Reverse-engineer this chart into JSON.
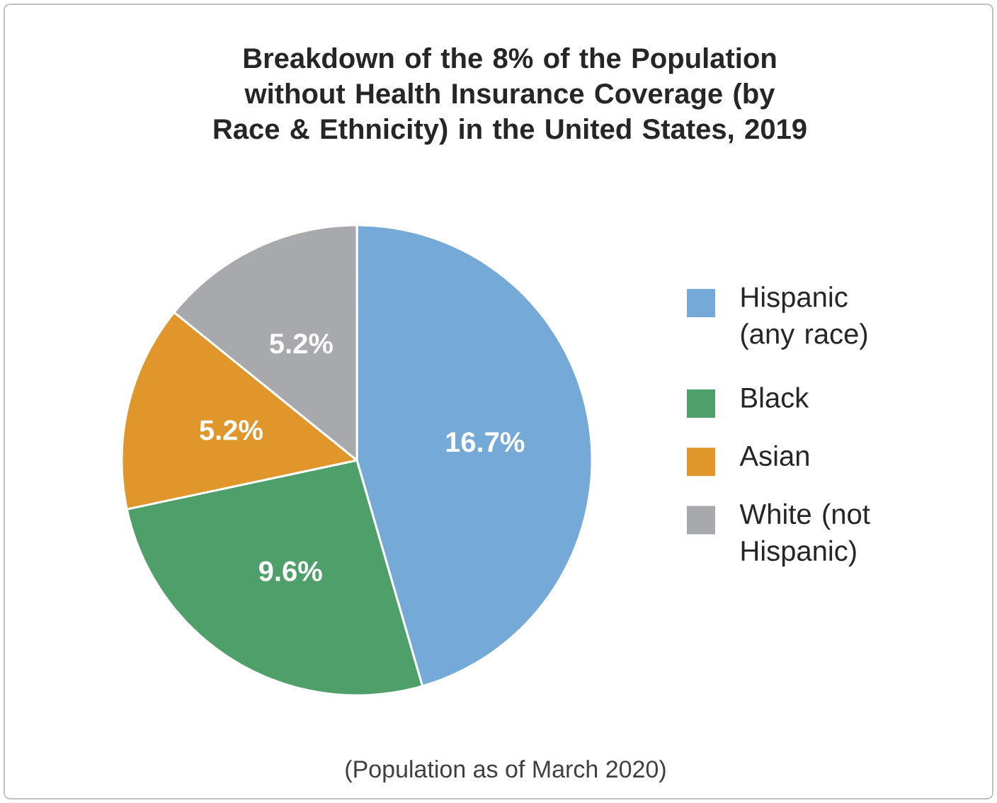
{
  "chart_data": {
    "type": "pie",
    "title": "Breakdown of the 8% of the Population without Health Insurance Coverage (by Race & Ethnicity) in the United States, 2019",
    "categories": [
      "Hispanic (any race)",
      "Black",
      "Asian",
      "White (not Hispanic)"
    ],
    "values": [
      16.7,
      9.6,
      5.2,
      5.2
    ],
    "value_labels": [
      "16.7%",
      "9.6%",
      "5.2%",
      "5.2%"
    ],
    "colors": [
      "#74a9d8",
      "#4e9f6a",
      "#e0962b",
      "#a8a9ad"
    ],
    "legend": "right",
    "annotations": [
      "(Population as of March 2020)"
    ]
  }
}
